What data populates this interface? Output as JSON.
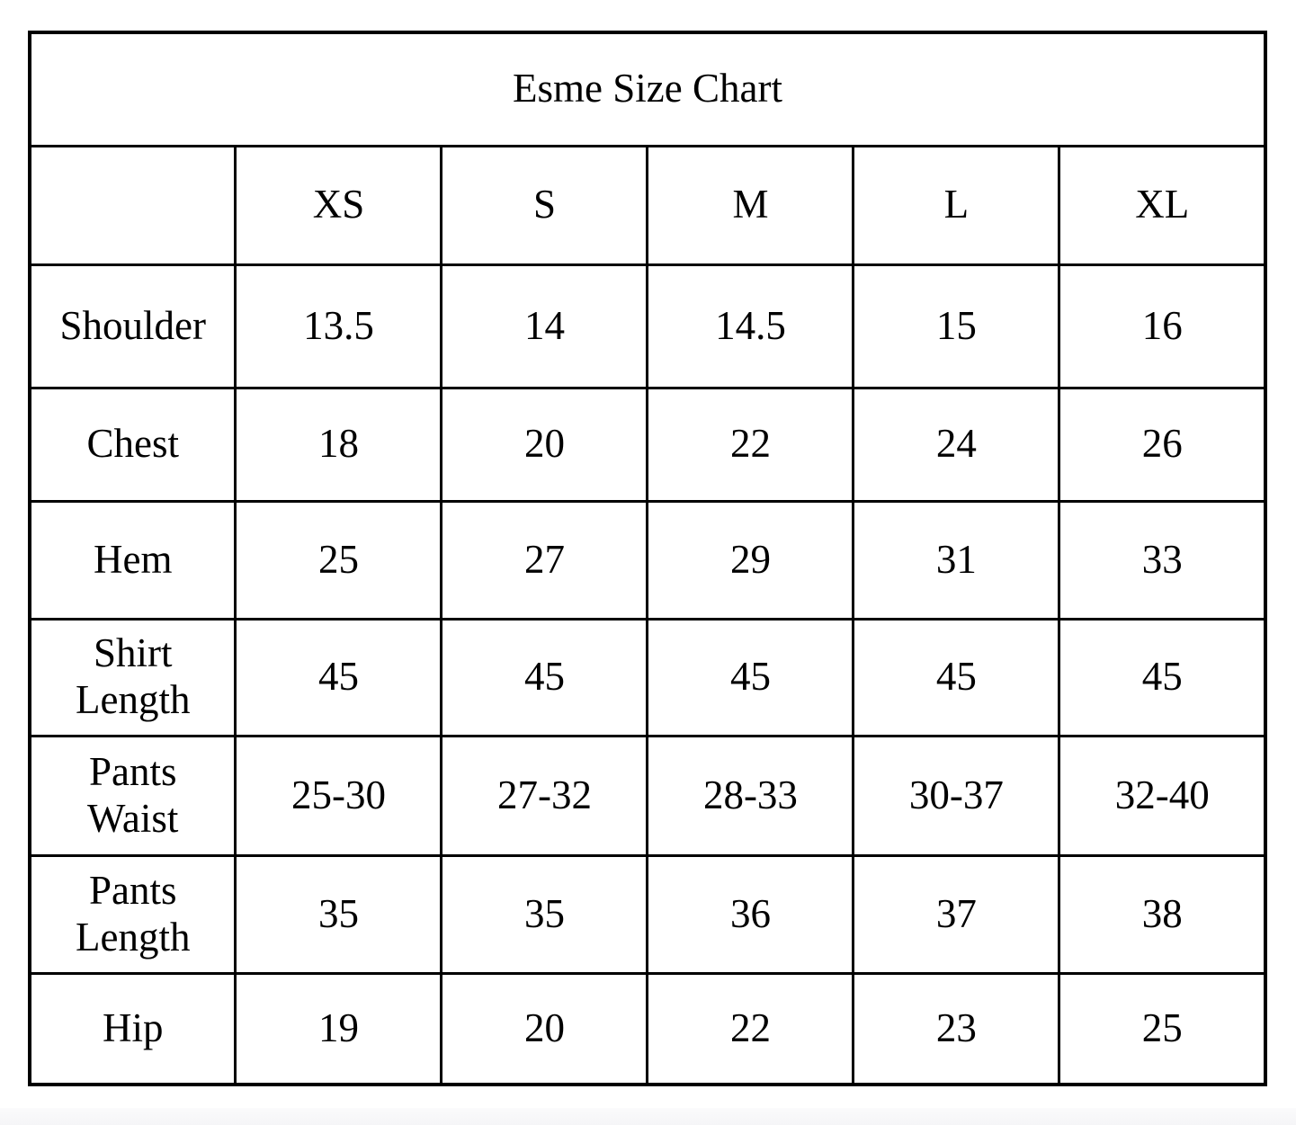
{
  "page": {
    "background": "#ffffff",
    "border_color": "#000000",
    "text_color": "#000000",
    "footer_strip_color": "#f5f5f7"
  },
  "chart_data": {
    "type": "table",
    "title": "Esme Size Chart",
    "columns": [
      "",
      "XS",
      "S",
      "M",
      "L",
      "XL"
    ],
    "rows": [
      {
        "label": "Shoulder",
        "values": [
          "13.5",
          "14",
          "14.5",
          "15",
          "16"
        ]
      },
      {
        "label": "Chest",
        "values": [
          "18",
          "20",
          "22",
          "24",
          "26"
        ]
      },
      {
        "label": "Hem",
        "values": [
          "25",
          "27",
          "29",
          "31",
          "33"
        ]
      },
      {
        "label": "Shirt Length",
        "values": [
          "45",
          "45",
          "45",
          "45",
          "45"
        ]
      },
      {
        "label": "Pants Waist",
        "values": [
          "25-30",
          "27-32",
          "28-33",
          "30-37",
          "32-40"
        ]
      },
      {
        "label": "Pants Length",
        "values": [
          "35",
          "35",
          "36",
          "37",
          "38"
        ]
      },
      {
        "label": "Hip",
        "values": [
          "19",
          "20",
          "22",
          "23",
          "25"
        ]
      }
    ]
  }
}
